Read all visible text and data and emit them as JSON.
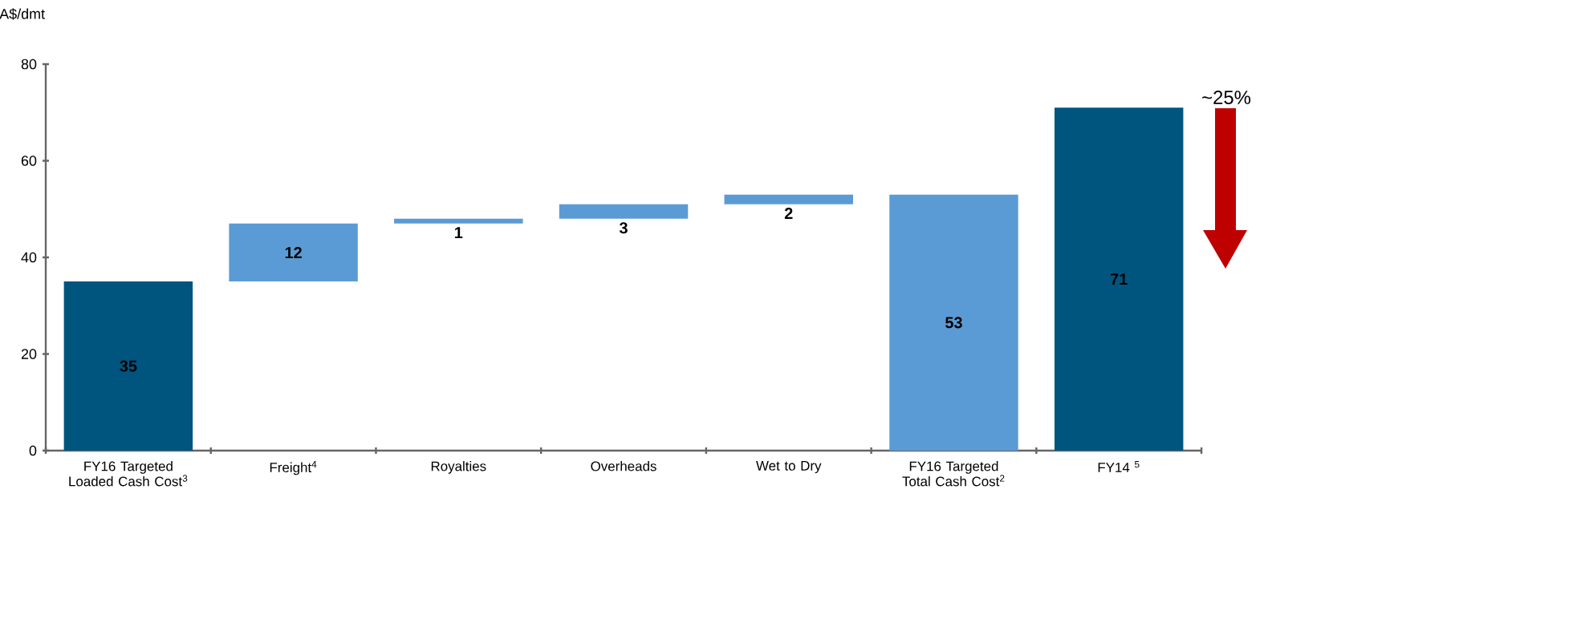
{
  "chart_data": {
    "type": "bar",
    "ylabel": "A$/dmt",
    "categories": [
      "FY16 Targeted Loaded Cash Cost$^{3}$",
      "Freight$^{4}$",
      "Royalties",
      "Overheads",
      "Wet to Dry",
      "FY16 Targeted Total Cash Cost$^{2}$",
      "FY14 $^{5}$"
    ],
    "values": [
      35,
      12,
      1,
      3,
      2,
      53,
      71
    ],
    "base": [
      0,
      35,
      47,
      48,
      51,
      0,
      0
    ],
    "colors": [
      "#00557f",
      "#5b9bd5",
      "#5b9bd5",
      "#5b9bd5",
      "#5b9bd5",
      "#5b9bd5",
      "#00557f"
    ],
    "data_labels": true,
    "ylim": [
      0,
      80
    ],
    "yticks": [
      0,
      20,
      40,
      60,
      80
    ],
    "annotations": [
      "~25%"
    ]
  }
}
